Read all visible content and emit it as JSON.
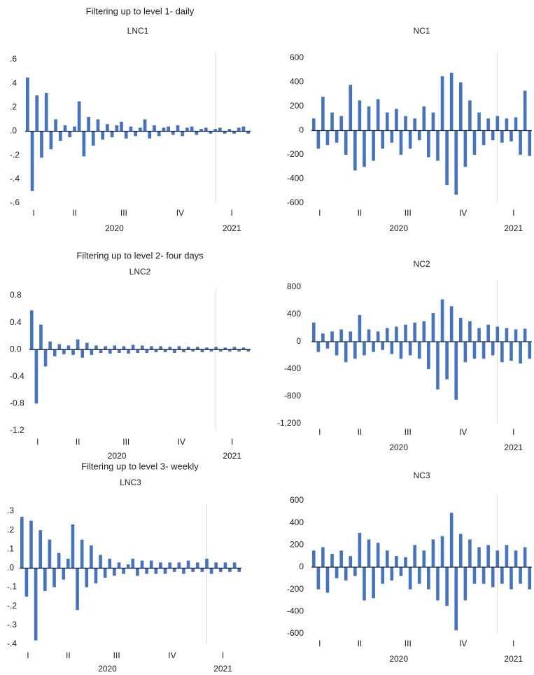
{
  "headings": [
    "Filtering up to level 1- daily",
    "Filtering up to level 2- four days",
    "Filtering up to level 3- weekly"
  ],
  "chart_data": [
    {
      "type": "bar",
      "title": "LNC1",
      "color": "#4472c4",
      "xlim": [
        0,
        48
      ],
      "ylim": [
        -0.6,
        0.6
      ],
      "yticks": [
        {
          "value": 0.6,
          "label": ".6"
        },
        {
          "value": 0.4,
          "label": ".4"
        },
        {
          "value": 0.2,
          "label": ".2"
        },
        {
          "value": 0,
          "label": ".0"
        },
        {
          "value": -0.2,
          "label": "-.2"
        },
        {
          "value": -0.4,
          "label": "-.4"
        },
        {
          "value": -0.6,
          "label": "-.6"
        }
      ],
      "xticks": [
        {
          "value": 1.8,
          "label": "I"
        },
        {
          "value": 10.5,
          "label": "II"
        },
        {
          "value": 21,
          "label": "III"
        },
        {
          "value": 33,
          "label": "IV"
        },
        {
          "value": 44,
          "label": "I"
        }
      ],
      "year_labels": [
        {
          "value": 19,
          "label": "2020"
        },
        {
          "value": 44,
          "label": "2021"
        }
      ],
      "values": [
        0.45,
        -0.5,
        0.3,
        -0.22,
        0.32,
        -0.15,
        0.1,
        -0.08,
        0.05,
        -0.05,
        0.04,
        0.25,
        -0.21,
        0.12,
        -0.12,
        0.1,
        -0.07,
        0.06,
        -0.05,
        0.05,
        0.08,
        -0.06,
        0.04,
        -0.04,
        0.03,
        0.1,
        -0.06,
        0.05,
        -0.04,
        0.03,
        0.04,
        -0.03,
        0.05,
        -0.04,
        0.03,
        0.04,
        -0.03,
        0.02,
        0.03,
        -0.02,
        0.02,
        0.03,
        -0.02,
        0.02,
        -0.02,
        0.03,
        0.04,
        -0.02
      ]
    },
    {
      "type": "bar",
      "title": "NC1",
      "color": "#4472c4",
      "xlim": [
        0,
        48
      ],
      "ylim": [
        -600,
        600
      ],
      "yticks": [
        600,
        400,
        200,
        0,
        -200,
        -400,
        -600
      ],
      "xticks": [
        {
          "value": 1.8,
          "label": "I"
        },
        {
          "value": 10.5,
          "label": "II"
        },
        {
          "value": 21,
          "label": "III"
        },
        {
          "value": 33,
          "label": "IV"
        },
        {
          "value": 44,
          "label": "I"
        }
      ],
      "year_labels": [
        {
          "value": 19,
          "label": "2020"
        },
        {
          "value": 44,
          "label": "2021"
        }
      ],
      "values": [
        100,
        -150,
        280,
        -120,
        150,
        -100,
        120,
        -200,
        380,
        -330,
        250,
        -300,
        200,
        -250,
        260,
        -150,
        150,
        -100,
        180,
        -200,
        120,
        -150,
        100,
        -80,
        200,
        -220,
        150,
        -250,
        450,
        -450,
        480,
        -530,
        400,
        -300,
        250,
        -200,
        150,
        -120,
        100,
        -80,
        120,
        -100,
        100,
        -90,
        110,
        -200,
        330,
        -210
      ]
    },
    {
      "type": "bar",
      "title": "LNC2",
      "color": "#4472c4",
      "xlim": [
        0,
        48
      ],
      "ylim": [
        -1.2,
        0.8
      ],
      "yticks": [
        0.8,
        0.4,
        {
          "value": 0,
          "label": "0.0"
        },
        -0.4,
        -0.8,
        -1.2
      ],
      "xticks": [
        {
          "value": 1.8,
          "label": "I"
        },
        {
          "value": 10.5,
          "label": "II"
        },
        {
          "value": 21,
          "label": "III"
        },
        {
          "value": 33,
          "label": "IV"
        },
        {
          "value": 44,
          "label": "I"
        }
      ],
      "year_labels": [
        {
          "value": 19,
          "label": "2020"
        },
        {
          "value": 44,
          "label": "2021"
        }
      ],
      "values": [
        0.58,
        -0.8,
        0.37,
        -0.25,
        0.12,
        -0.1,
        0.08,
        -0.07,
        0.06,
        -0.08,
        0.15,
        -0.12,
        0.1,
        -0.08,
        0.06,
        -0.05,
        0.05,
        -0.06,
        0.06,
        -0.05,
        0.05,
        -0.06,
        0.07,
        -0.05,
        0.06,
        -0.05,
        0.05,
        -0.04,
        0.05,
        -0.04,
        0.04,
        -0.05,
        0.05,
        -0.04,
        0.04,
        -0.03,
        0.04,
        -0.04,
        0.03,
        -0.03,
        0.04,
        -0.03,
        0.03,
        -0.03,
        0.04,
        -0.03,
        0.03,
        -0.03
      ]
    },
    {
      "type": "bar",
      "title": "NC2",
      "color": "#4472c4",
      "xlim": [
        0,
        48
      ],
      "ylim": [
        -1200,
        800
      ],
      "yticks": [
        800,
        400,
        0,
        -400,
        -800,
        {
          "value": -1200,
          "label": "-1,200"
        }
      ],
      "xticks": [
        {
          "value": 1.8,
          "label": "I"
        },
        {
          "value": 10.5,
          "label": "II"
        },
        {
          "value": 21,
          "label": "III"
        },
        {
          "value": 33,
          "label": "IV"
        },
        {
          "value": 44,
          "label": "I"
        }
      ],
      "year_labels": [
        {
          "value": 19,
          "label": "2020"
        },
        {
          "value": 44,
          "label": "2021"
        }
      ],
      "values": [
        280,
        -150,
        120,
        -100,
        150,
        -200,
        180,
        -300,
        150,
        -250,
        390,
        -200,
        180,
        -150,
        150,
        -120,
        200,
        -180,
        220,
        -250,
        250,
        -200,
        280,
        -250,
        300,
        -400,
        420,
        -700,
        620,
        -550,
        520,
        -850,
        350,
        -300,
        300,
        -250,
        200,
        -250,
        250,
        -200,
        220,
        -300,
        200,
        -280,
        180,
        -320,
        190,
        -250
      ]
    },
    {
      "type": "bar",
      "title": "LNC3",
      "color": "#4472c4",
      "xlim": [
        0,
        48
      ],
      "ylim": [
        -0.4,
        0.3
      ],
      "yticks": [
        {
          "value": 0.3,
          "label": ".3"
        },
        {
          "value": 0.2,
          "label": ".2"
        },
        {
          "value": 0.1,
          "label": ".1"
        },
        {
          "value": 0,
          "label": ".0"
        },
        {
          "value": -0.1,
          "label": "-.1"
        },
        {
          "value": -0.2,
          "label": "-.2"
        },
        {
          "value": -0.3,
          "label": "-.3"
        },
        {
          "value": -0.4,
          "label": "-.4"
        }
      ],
      "xticks": [
        {
          "value": 1.8,
          "label": "I"
        },
        {
          "value": 10.5,
          "label": "II"
        },
        {
          "value": 21,
          "label": "III"
        },
        {
          "value": 33,
          "label": "IV"
        },
        {
          "value": 44,
          "label": "I"
        }
      ],
      "year_labels": [
        {
          "value": 19,
          "label": "2020"
        },
        {
          "value": 44,
          "label": "2021"
        }
      ],
      "values": [
        0.27,
        -0.15,
        0.25,
        -0.38,
        0.2,
        -0.12,
        0.15,
        -0.1,
        0.08,
        -0.06,
        0.05,
        0.23,
        -0.22,
        0.15,
        -0.1,
        0.12,
        -0.08,
        0.07,
        -0.05,
        0.05,
        -0.04,
        0.03,
        -0.03,
        0.02,
        0.05,
        -0.04,
        0.04,
        -0.03,
        0.04,
        -0.03,
        0.03,
        -0.03,
        0.03,
        -0.02,
        0.03,
        -0.03,
        0.04,
        -0.02,
        0.03,
        -0.02,
        0.05,
        -0.03,
        0.03,
        -0.02,
        0.03,
        -0.02,
        0.03,
        -0.02
      ]
    },
    {
      "type": "bar",
      "title": "NC3",
      "color": "#4472c4",
      "xlim": [
        0,
        48
      ],
      "ylim": [
        -600,
        600
      ],
      "yticks": [
        600,
        400,
        200,
        0,
        -200,
        -400,
        -600
      ],
      "xticks": [
        {
          "value": 1.8,
          "label": "I"
        },
        {
          "value": 10.5,
          "label": "II"
        },
        {
          "value": 21,
          "label": "III"
        },
        {
          "value": 33,
          "label": "IV"
        },
        {
          "value": 44,
          "label": "I"
        }
      ],
      "year_labels": [
        {
          "value": 19,
          "label": "2020"
        },
        {
          "value": 44,
          "label": "2021"
        }
      ],
      "values": [
        150,
        -200,
        180,
        -230,
        120,
        -100,
        150,
        -120,
        100,
        -80,
        310,
        -300,
        250,
        -280,
        220,
        -150,
        150,
        -120,
        100,
        -80,
        90,
        -200,
        200,
        -150,
        150,
        -200,
        250,
        -300,
        280,
        -350,
        490,
        -570,
        300,
        -300,
        250,
        -150,
        180,
        -150,
        200,
        -180,
        150,
        -150,
        200,
        -200,
        150,
        -150,
        180,
        -200
      ]
    }
  ]
}
